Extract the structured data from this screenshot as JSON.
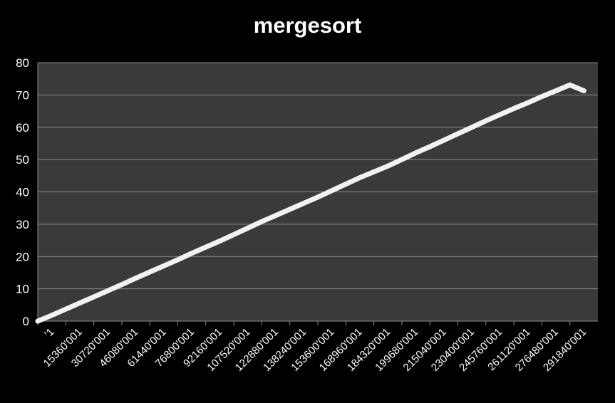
{
  "chart_data": {
    "type": "line",
    "title": "mergesort",
    "xlabel": "",
    "ylabel": "",
    "ylim": [
      0,
      80
    ],
    "yticks": [
      0,
      10,
      20,
      30,
      40,
      50,
      60,
      70,
      80
    ],
    "grid": true,
    "legend": "none",
    "colors": {
      "background": "#000000",
      "plot_area": "#3a3a3a",
      "gridline": "#8c8c8c",
      "line": "#f2f2f2",
      "text": "#ffffff"
    },
    "categories": [
      "'1",
      "15360'001",
      "30720'001",
      "46080'001",
      "61440'001",
      "76800'001",
      "92160'001",
      "107520'001",
      "122880'001",
      "138240'001",
      "153600'001",
      "168960'001",
      "184320'001",
      "199680'001",
      "215040'001",
      "230400'001",
      "245760'001",
      "261120'001",
      "276480'001",
      "291840'001"
    ],
    "x": [
      1,
      15360001,
      30720001,
      46080001,
      61440001,
      76800001,
      92160001,
      107520001,
      122880001,
      138240001,
      153600001,
      168960001,
      184320001,
      199680001,
      215040001,
      230400001,
      245760001,
      261120001,
      276480001,
      291840001
    ],
    "series": [
      {
        "x": [
          1,
          7680001,
          15360001,
          23040001,
          30720001,
          38400001,
          46080001,
          53760001,
          61440001,
          69120001,
          76800001,
          84480001,
          92160001,
          99840001,
          107520001,
          115200001,
          122880001,
          130560001,
          138240001,
          145920001,
          153600001,
          161280001,
          168960001,
          176640001,
          184320001,
          192000001,
          199680001,
          207360001,
          215040001,
          222720001,
          230400001,
          238080001,
          245760001,
          253440001,
          261120001,
          268800001,
          276480001,
          284160001,
          291840001,
          299520001
        ],
        "values": [
          0,
          1.8,
          3.7,
          5.6,
          7.5,
          9.4,
          11.3,
          13.3,
          15.2,
          17.1,
          19.0,
          21.0,
          22.9,
          24.8,
          26.8,
          28.8,
          30.8,
          32.7,
          34.6,
          36.5,
          38.4,
          40.4,
          42.4,
          44.4,
          46.2,
          48.0,
          50.0,
          52.1,
          54.0,
          56.0,
          58.0,
          60.0,
          62.0,
          63.9,
          65.8,
          67.6,
          69.5,
          71.3,
          73.1,
          71.3
        ],
        "color": "#f2f2f2"
      }
    ]
  }
}
